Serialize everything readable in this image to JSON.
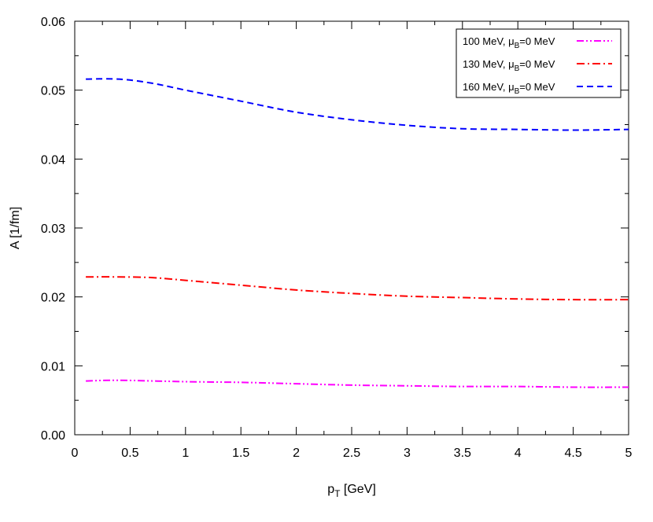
{
  "chart_data": {
    "type": "line",
    "xlabel": {
      "main": "p",
      "sub": "T",
      "rest": " [GeV]"
    },
    "ylabel": "A [1/fm]",
    "xlim": [
      0,
      5
    ],
    "ylim": [
      0,
      0.06
    ],
    "x_ticks": [
      "0",
      "0.5",
      "1",
      "1.5",
      "2",
      "2.5",
      "3",
      "3.5",
      "4",
      "4.5",
      "5"
    ],
    "y_ticks": [
      "0.00",
      "0.01",
      "0.02",
      "0.03",
      "0.04",
      "0.05",
      "0.06"
    ],
    "grid": false,
    "legend_position": "top-right",
    "series": [
      {
        "name": {
          "pre": "100 MeV, ",
          "mu": "μ",
          "sub": "B",
          "post": "=0 MeV"
        },
        "color": "#ff00ff",
        "dash": "dash-dot-dot",
        "x": [
          0.1,
          0.4,
          1.0,
          1.5,
          2.0,
          2.5,
          3.0,
          3.5,
          4.0,
          4.5,
          5.0
        ],
        "y": [
          0.0078,
          0.0079,
          0.0077,
          0.0076,
          0.0074,
          0.0072,
          0.0071,
          0.007,
          0.007,
          0.0069,
          0.0069
        ]
      },
      {
        "name": {
          "pre": "130 MeV, ",
          "mu": "μ",
          "sub": "B",
          "post": "=0 MeV"
        },
        "color": "#ff0000",
        "dash": "dash-dot",
        "x": [
          0.1,
          0.4,
          0.7,
          1.0,
          1.5,
          2.0,
          2.5,
          3.0,
          3.5,
          4.0,
          4.5,
          5.0
        ],
        "y": [
          0.0229,
          0.0229,
          0.0228,
          0.0224,
          0.0217,
          0.021,
          0.0205,
          0.0201,
          0.0199,
          0.0197,
          0.0196,
          0.0196
        ]
      },
      {
        "name": {
          "pre": "160 MeV, ",
          "mu": "μ",
          "sub": "B",
          "post": "=0 MeV"
        },
        "color": "#0000ff",
        "dash": "dash",
        "x": [
          0.1,
          0.4,
          0.7,
          1.0,
          1.5,
          2.0,
          2.5,
          3.0,
          3.5,
          4.0,
          4.5,
          5.0
        ],
        "y": [
          0.0516,
          0.0516,
          0.051,
          0.05,
          0.0484,
          0.0468,
          0.0457,
          0.0449,
          0.0444,
          0.0443,
          0.0442,
          0.0443
        ]
      }
    ]
  }
}
